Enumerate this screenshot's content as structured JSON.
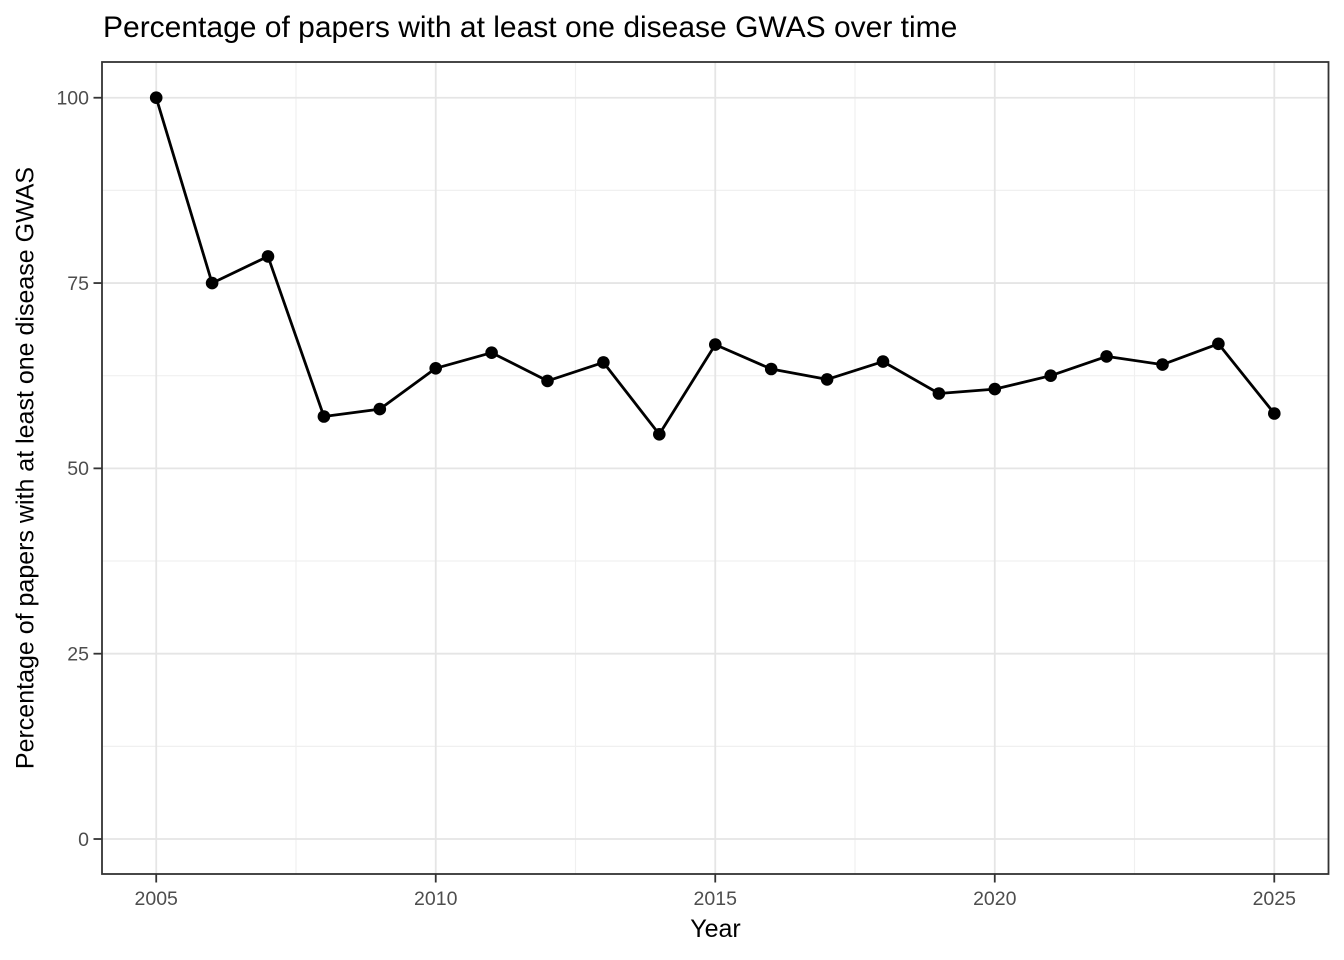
{
  "chart_data": {
    "type": "line",
    "title": "Percentage of papers with at least one disease GWAS over time",
    "xlabel": "Year",
    "ylabel": "Percentage of papers with at least one disease GWAS",
    "x": [
      2005,
      2006,
      2007,
      2008,
      2009,
      2010,
      2011,
      2012,
      2013,
      2014,
      2015,
      2016,
      2017,
      2018,
      2019,
      2020,
      2021,
      2022,
      2023,
      2024,
      2025
    ],
    "values": [
      100,
      75,
      78.6,
      57,
      58,
      63.5,
      65.6,
      61.8,
      64.3,
      54.6,
      66.7,
      63.4,
      62,
      64.4,
      60.1,
      60.7,
      62.5,
      65.1,
      64,
      66.8,
      57.4
    ],
    "series_name": "Percentage of papers with at least one disease GWAS",
    "x_ticks": [
      2005,
      2010,
      2015,
      2020,
      2025
    ],
    "x_tick_labels": [
      "2005",
      "2010",
      "2015",
      "2020",
      "2025"
    ],
    "y_ticks": [
      0,
      25,
      50,
      75,
      100
    ],
    "y_tick_labels": [
      "0",
      "25",
      "50",
      "75",
      "100"
    ],
    "x_minor_ticks": [
      2007.5,
      2012.5,
      2017.5,
      2022.5
    ],
    "y_minor_ticks": [
      12.5,
      37.5,
      62.5,
      87.5
    ],
    "xlim": [
      2004.03,
      2025.97
    ],
    "ylim": [
      -4.72,
      104.82
    ],
    "grid": true,
    "legend": false,
    "marker": "filled-circle",
    "colors": {
      "line": "#000000",
      "point": "#000000",
      "grid_major": "#e5e5e5",
      "grid_minor": "#f0f0f0",
      "panel_border": "#333333",
      "tick_mark": "#333333",
      "tick_label": "#4d4d4d",
      "title": "#000000",
      "axis_title": "#000000",
      "background": "#ffffff"
    }
  }
}
